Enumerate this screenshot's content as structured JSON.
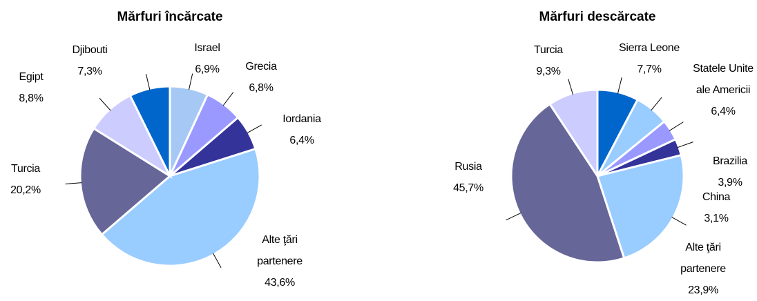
{
  "chart_data": [
    {
      "type": "pie",
      "title": "Mărfuri încărcate",
      "categories": [
        "Israel",
        "Grecia",
        "Iordania",
        "Alte ţări partenere",
        "Turcia",
        "Egipt",
        "Djibouti"
      ],
      "values": [
        6.9,
        6.8,
        6.4,
        43.6,
        20.2,
        8.8,
        7.3
      ],
      "value_labels": [
        "6,9%",
        "6,8%",
        "6,4%",
        "43,6%",
        "20,2%",
        "8,8%",
        "7,3%"
      ],
      "colors": [
        "#a6c8f4",
        "#9999ff",
        "#333399",
        "#99ccff",
        "#666699",
        "#ccccff",
        "#0066cc"
      ]
    },
    {
      "type": "pie",
      "title": "Mărfuri descărcate",
      "categories": [
        "Sierra Leone",
        "Statele Unite ale Americii",
        "Brazilia",
        "China",
        "Alte ţări partenere",
        "Rusia",
        "Turcia"
      ],
      "values": [
        7.7,
        6.4,
        3.9,
        3.1,
        23.9,
        45.7,
        9.3
      ],
      "value_labels": [
        "7,7%",
        "6,4%",
        "3,9%",
        "3,1%",
        "23,9%",
        "45,7%",
        "9,3%"
      ],
      "colors": [
        "#0066cc",
        "#99ccff",
        "#9999ff",
        "#333399",
        "#99ccff",
        "#666699",
        "#ccccff"
      ]
    }
  ]
}
